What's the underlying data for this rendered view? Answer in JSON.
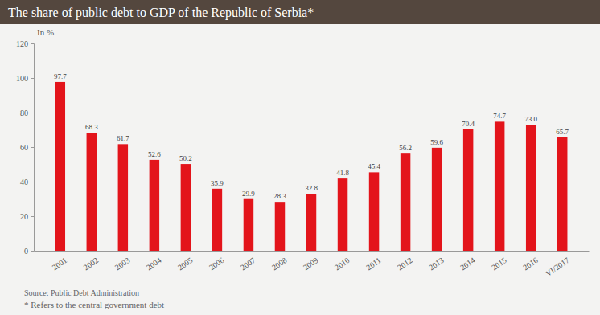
{
  "chart_data": {
    "type": "bar",
    "title": "The share of public debt to GDP of the Republic of Serbia*",
    "y_label": "In %",
    "categories": [
      "2001",
      "2002",
      "2003",
      "2004",
      "2005",
      "2006",
      "2007",
      "2008",
      "2009",
      "2010",
      "2011",
      "2012",
      "2013",
      "2014",
      "2015",
      "2016",
      "VI/2017"
    ],
    "values": [
      97.7,
      68.3,
      61.7,
      52.6,
      50.2,
      35.9,
      29.9,
      28.3,
      32.8,
      41.8,
      45.4,
      56.2,
      59.6,
      70.4,
      74.7,
      73.0,
      65.7
    ],
    "value_labels": [
      "97.7",
      "68.3",
      "61.7",
      "52.6",
      "50.2",
      "35.9",
      "29.9",
      "28.3",
      "32.8",
      "41.8",
      "45.4",
      "56.2",
      "59.6",
      "70.4",
      "74.7",
      "73.0",
      "65.7"
    ],
    "color": "#e3141b",
    "ylim": [
      0,
      120
    ],
    "yticks": [
      0,
      20,
      40,
      60,
      80,
      100,
      120
    ],
    "grid": false,
    "data_labels": true,
    "source": "Source: Public Debt Administration",
    "footnote": "* Refers to the central government debt"
  }
}
